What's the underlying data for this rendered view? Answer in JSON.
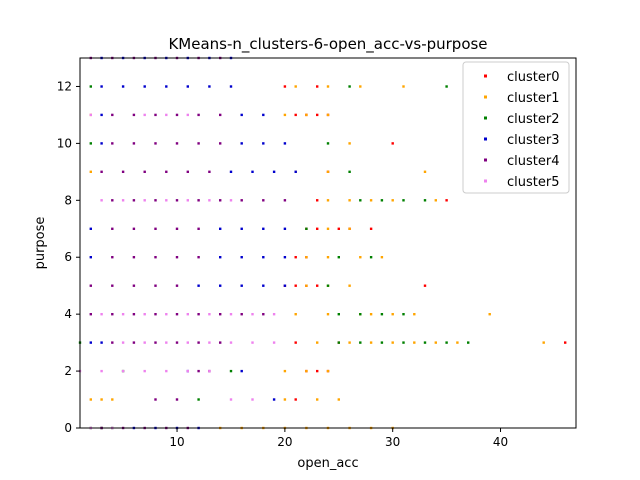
{
  "chart_data": {
    "type": "scatter",
    "title": "KMeans-n_clusters-6-open_acc-vs-purpose",
    "xlabel": "open_acc",
    "ylabel": "purpose",
    "xlim": [
      1,
      47
    ],
    "ylim": [
      0,
      13
    ],
    "xticks": [
      10,
      20,
      30,
      40
    ],
    "yticks": [
      0,
      2,
      4,
      6,
      8,
      10,
      12
    ],
    "grid": false,
    "legend_position": "top-right",
    "series": [
      {
        "name": "cluster0",
        "color": "#ff0000",
        "points": [
          [
            21,
            1
          ],
          [
            22,
            2
          ],
          [
            23,
            2
          ],
          [
            24,
            2
          ],
          [
            21,
            3
          ],
          [
            25,
            3
          ],
          [
            46,
            3
          ],
          [
            20,
            5
          ],
          [
            21,
            5
          ],
          [
            22,
            5
          ],
          [
            23,
            5
          ],
          [
            33,
            5
          ],
          [
            21,
            6
          ],
          [
            22,
            6
          ],
          [
            22,
            7
          ],
          [
            23,
            7
          ],
          [
            25,
            7
          ],
          [
            26,
            7
          ],
          [
            28,
            7
          ],
          [
            23,
            8
          ],
          [
            35,
            8
          ],
          [
            24,
            9
          ],
          [
            30,
            10
          ],
          [
            21,
            11
          ],
          [
            22,
            11
          ],
          [
            23,
            11
          ],
          [
            24,
            11
          ],
          [
            20,
            12
          ],
          [
            23,
            12
          ]
        ]
      },
      {
        "name": "cluster1",
        "color": "#ffa500",
        "points": [
          [
            14,
            0
          ],
          [
            16,
            0
          ],
          [
            18,
            0
          ],
          [
            20,
            0
          ],
          [
            22,
            0
          ],
          [
            24,
            0
          ],
          [
            26,
            0
          ],
          [
            28,
            0
          ],
          [
            30,
            0
          ],
          [
            2,
            1
          ],
          [
            3,
            1
          ],
          [
            4,
            1
          ],
          [
            20,
            1
          ],
          [
            23,
            1
          ],
          [
            25,
            1
          ],
          [
            20,
            2
          ],
          [
            22,
            2
          ],
          [
            24,
            2
          ],
          [
            23,
            3
          ],
          [
            26,
            3
          ],
          [
            28,
            3
          ],
          [
            30,
            3
          ],
          [
            32,
            3
          ],
          [
            34,
            3
          ],
          [
            36,
            3
          ],
          [
            44,
            3
          ],
          [
            21,
            4
          ],
          [
            24,
            4
          ],
          [
            27,
            4
          ],
          [
            28,
            4
          ],
          [
            30,
            4
          ],
          [
            32,
            4
          ],
          [
            39,
            4
          ],
          [
            22,
            5
          ],
          [
            24,
            5
          ],
          [
            26,
            5
          ],
          [
            22,
            6
          ],
          [
            24,
            6
          ],
          [
            27,
            6
          ],
          [
            29,
            6
          ],
          [
            24,
            7
          ],
          [
            26,
            7
          ],
          [
            24,
            8
          ],
          [
            26,
            8
          ],
          [
            28,
            8
          ],
          [
            30,
            8
          ],
          [
            34,
            8
          ],
          [
            2,
            9
          ],
          [
            21,
            9
          ],
          [
            24,
            9
          ],
          [
            33,
            9
          ],
          [
            26,
            10
          ],
          [
            2,
            11
          ],
          [
            20,
            11
          ],
          [
            22,
            11
          ],
          [
            24,
            11
          ],
          [
            21,
            12
          ],
          [
            24,
            12
          ],
          [
            27,
            12
          ],
          [
            31,
            12
          ]
        ]
      },
      {
        "name": "cluster2",
        "color": "#008000",
        "points": [
          [
            2,
            0
          ],
          [
            3,
            0
          ],
          [
            4,
            0
          ],
          [
            12,
            1
          ],
          [
            5,
            2
          ],
          [
            15,
            2
          ],
          [
            1,
            3
          ],
          [
            25,
            3
          ],
          [
            27,
            3
          ],
          [
            29,
            3
          ],
          [
            31,
            3
          ],
          [
            33,
            3
          ],
          [
            35,
            3
          ],
          [
            37,
            3
          ],
          [
            25,
            4
          ],
          [
            27,
            4
          ],
          [
            29,
            4
          ],
          [
            31,
            4
          ],
          [
            24,
            5
          ],
          [
            25,
            6
          ],
          [
            28,
            6
          ],
          [
            22,
            7
          ],
          [
            27,
            8
          ],
          [
            29,
            8
          ],
          [
            31,
            8
          ],
          [
            33,
            8
          ],
          [
            26,
            9
          ],
          [
            2,
            10
          ],
          [
            24,
            10
          ],
          [
            2,
            12
          ],
          [
            26,
            12
          ],
          [
            35,
            12
          ]
        ]
      },
      {
        "name": "cluster3",
        "color": "#0000cd",
        "points": [
          [
            6,
            0
          ],
          [
            8,
            0
          ],
          [
            10,
            0
          ],
          [
            12,
            0
          ],
          [
            19,
            1
          ],
          [
            11,
            2
          ],
          [
            16,
            2
          ],
          [
            2,
            3
          ],
          [
            3,
            3
          ],
          [
            12,
            5
          ],
          [
            14,
            5
          ],
          [
            16,
            5
          ],
          [
            18,
            5
          ],
          [
            20,
            5
          ],
          [
            2,
            6
          ],
          [
            14,
            6
          ],
          [
            16,
            6
          ],
          [
            18,
            6
          ],
          [
            20,
            6
          ],
          [
            2,
            7
          ],
          [
            14,
            7
          ],
          [
            16,
            7
          ],
          [
            18,
            7
          ],
          [
            20,
            7
          ],
          [
            15,
            9
          ],
          [
            17,
            9
          ],
          [
            19,
            9
          ],
          [
            21,
            9
          ],
          [
            3,
            10
          ],
          [
            16,
            10
          ],
          [
            18,
            10
          ],
          [
            20,
            10
          ],
          [
            3,
            11
          ],
          [
            16,
            11
          ],
          [
            18,
            11
          ],
          [
            3,
            12
          ],
          [
            5,
            12
          ],
          [
            7,
            12
          ],
          [
            9,
            12
          ],
          [
            11,
            12
          ],
          [
            13,
            12
          ],
          [
            15,
            12
          ],
          [
            3,
            13
          ],
          [
            5,
            13
          ],
          [
            7,
            13
          ],
          [
            9,
            13
          ],
          [
            11,
            13
          ],
          [
            13,
            13
          ],
          [
            15,
            13
          ]
        ]
      },
      {
        "name": "cluster4",
        "color": "#800080",
        "points": [
          [
            3,
            0
          ],
          [
            5,
            0
          ],
          [
            7,
            0
          ],
          [
            9,
            0
          ],
          [
            11,
            0
          ],
          [
            8,
            1
          ],
          [
            10,
            1
          ],
          [
            12,
            2
          ],
          [
            13,
            2
          ],
          [
            4,
            3
          ],
          [
            6,
            3
          ],
          [
            8,
            3
          ],
          [
            10,
            3
          ],
          [
            12,
            3
          ],
          [
            14,
            3
          ],
          [
            2,
            4
          ],
          [
            4,
            4
          ],
          [
            6,
            4
          ],
          [
            8,
            4
          ],
          [
            10,
            4
          ],
          [
            12,
            4
          ],
          [
            14,
            4
          ],
          [
            16,
            4
          ],
          [
            18,
            4
          ],
          [
            2,
            5
          ],
          [
            4,
            5
          ],
          [
            6,
            5
          ],
          [
            8,
            5
          ],
          [
            10,
            5
          ],
          [
            4,
            6
          ],
          [
            6,
            6
          ],
          [
            8,
            6
          ],
          [
            10,
            6
          ],
          [
            12,
            6
          ],
          [
            4,
            7
          ],
          [
            6,
            7
          ],
          [
            8,
            7
          ],
          [
            10,
            7
          ],
          [
            12,
            7
          ],
          [
            4,
            8
          ],
          [
            6,
            8
          ],
          [
            8,
            8
          ],
          [
            10,
            8
          ],
          [
            12,
            8
          ],
          [
            14,
            8
          ],
          [
            16,
            8
          ],
          [
            18,
            8
          ],
          [
            20,
            8
          ],
          [
            3,
            9
          ],
          [
            5,
            9
          ],
          [
            7,
            9
          ],
          [
            9,
            9
          ],
          [
            11,
            9
          ],
          [
            13,
            9
          ],
          [
            4,
            10
          ],
          [
            6,
            10
          ],
          [
            8,
            10
          ],
          [
            10,
            10
          ],
          [
            12,
            10
          ],
          [
            14,
            10
          ],
          [
            4,
            11
          ],
          [
            6,
            11
          ],
          [
            8,
            11
          ],
          [
            10,
            11
          ],
          [
            12,
            11
          ],
          [
            14,
            11
          ],
          [
            2,
            13
          ],
          [
            4,
            13
          ],
          [
            6,
            13
          ],
          [
            8,
            13
          ],
          [
            10,
            13
          ],
          [
            12,
            13
          ],
          [
            14,
            13
          ]
        ]
      },
      {
        "name": "cluster5",
        "color": "#ee82ee",
        "points": [
          [
            2,
            0
          ],
          [
            4,
            0
          ],
          [
            15,
            1
          ],
          [
            17,
            1
          ],
          [
            1,
            2
          ],
          [
            3,
            2
          ],
          [
            5,
            2
          ],
          [
            7,
            2
          ],
          [
            9,
            2
          ],
          [
            11,
            2
          ],
          [
            13,
            2
          ],
          [
            5,
            3
          ],
          [
            7,
            3
          ],
          [
            9,
            3
          ],
          [
            11,
            3
          ],
          [
            13,
            3
          ],
          [
            15,
            3
          ],
          [
            17,
            3
          ],
          [
            19,
            3
          ],
          [
            3,
            4
          ],
          [
            5,
            4
          ],
          [
            7,
            4
          ],
          [
            9,
            4
          ],
          [
            11,
            4
          ],
          [
            13,
            4
          ],
          [
            15,
            4
          ],
          [
            17,
            4
          ],
          [
            19,
            4
          ],
          [
            3,
            8
          ],
          [
            5,
            8
          ],
          [
            7,
            8
          ],
          [
            9,
            8
          ],
          [
            11,
            8
          ],
          [
            13,
            8
          ],
          [
            15,
            8
          ],
          [
            2,
            11
          ],
          [
            7,
            11
          ],
          [
            9,
            11
          ],
          [
            11,
            11
          ]
        ]
      }
    ]
  }
}
